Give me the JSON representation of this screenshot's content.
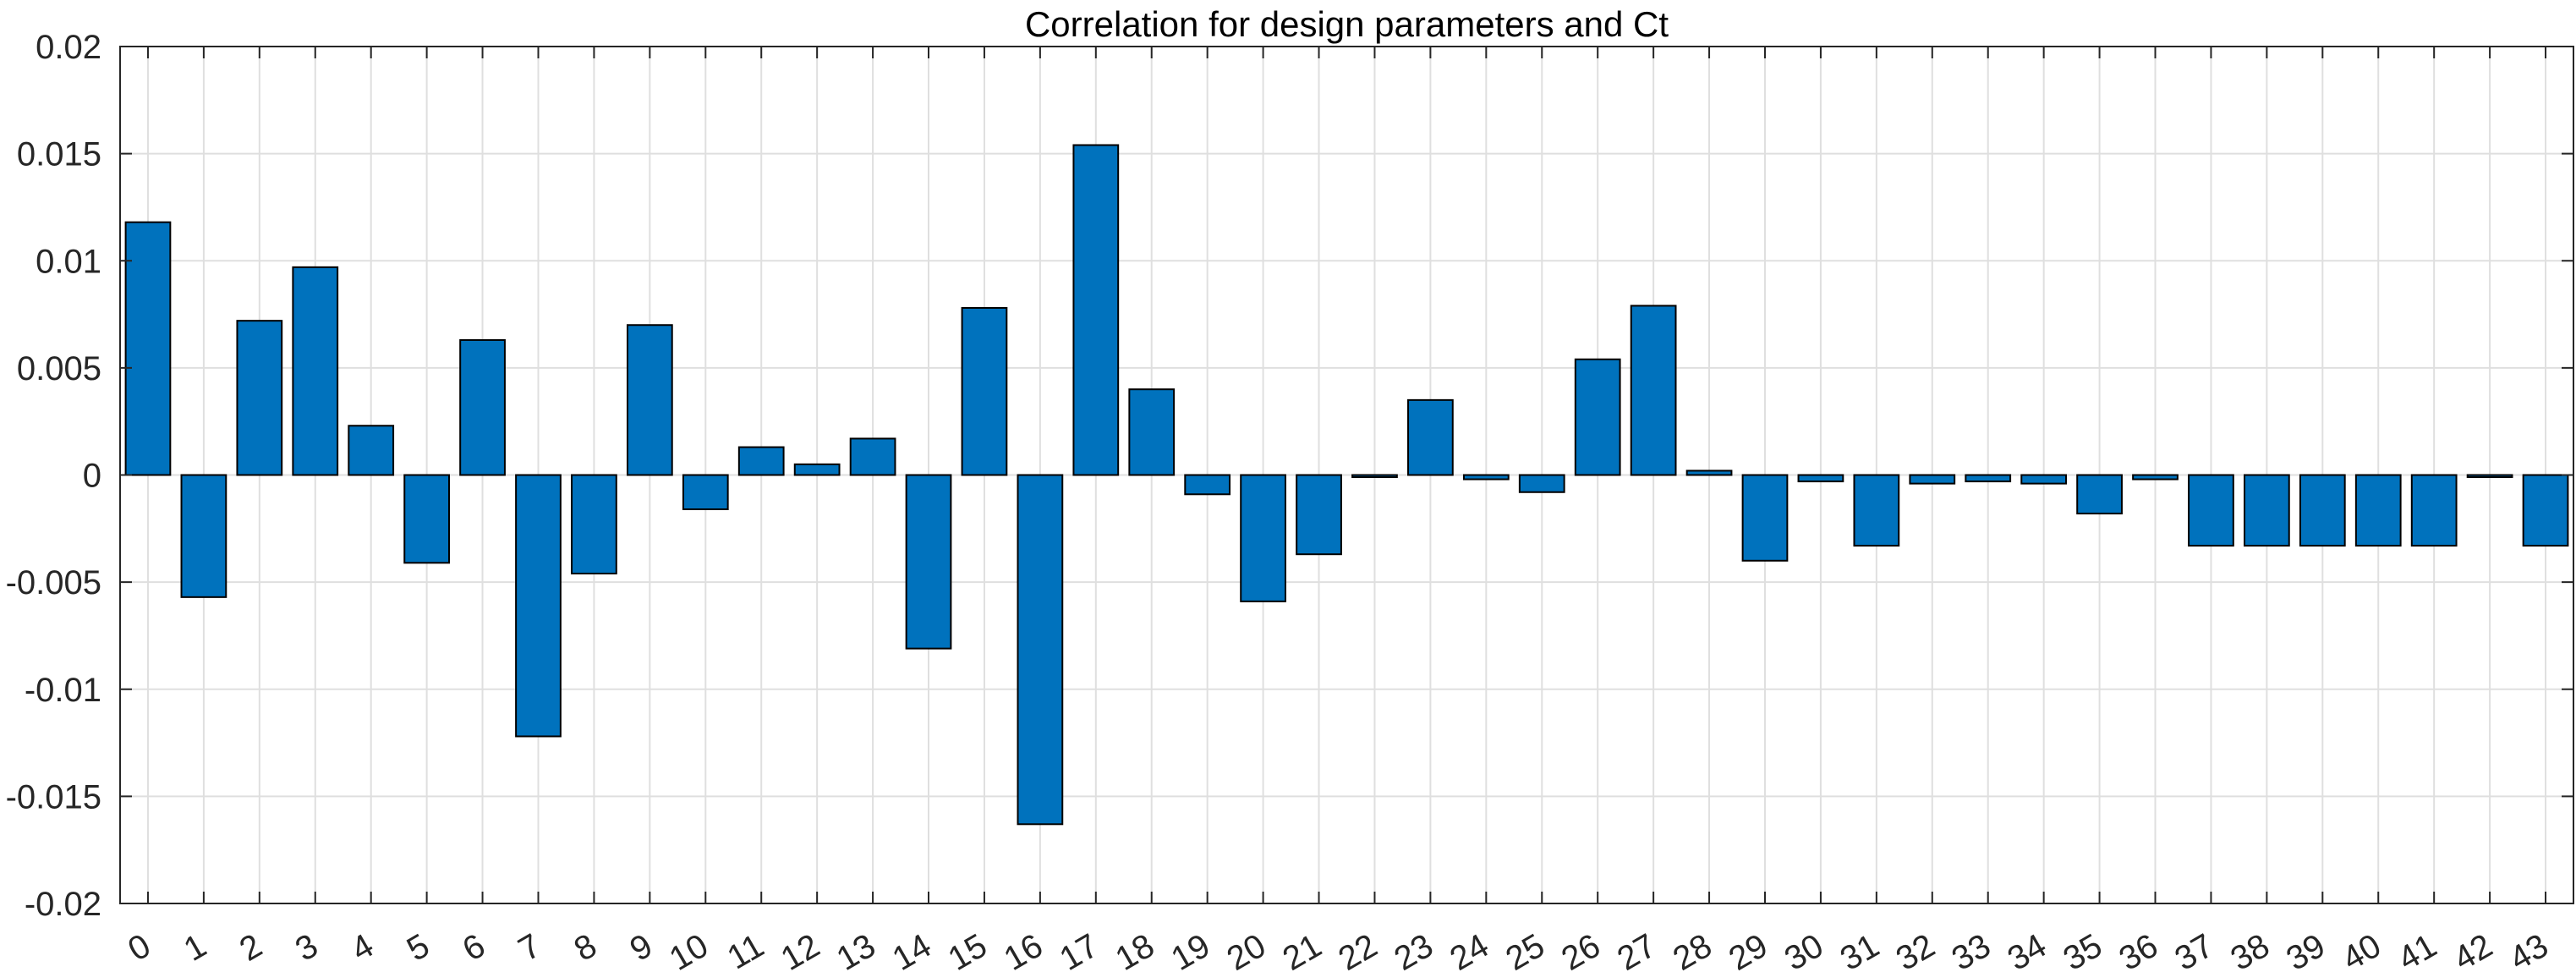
{
  "chart_data": {
    "type": "bar",
    "title": "Correlation for design parameters and Ct",
    "xlabel": "",
    "ylabel": "",
    "categories": [
      "0",
      "1",
      "2",
      "3",
      "4",
      "5",
      "6",
      "7",
      "8",
      "9",
      "10",
      "11",
      "12",
      "13",
      "14",
      "15",
      "16",
      "17",
      "18",
      "19",
      "20",
      "21",
      "22",
      "23",
      "24",
      "25",
      "26",
      "27",
      "28",
      "29",
      "30",
      "31",
      "32",
      "33",
      "34",
      "35",
      "36",
      "37",
      "38",
      "39",
      "40",
      "41",
      "42",
      "43"
    ],
    "values": [
      0.0118,
      -0.0057,
      0.0072,
      0.0097,
      0.0023,
      -0.0041,
      0.0063,
      -0.0122,
      -0.0046,
      0.007,
      -0.0016,
      0.0013,
      0.0005,
      0.0017,
      -0.0081,
      0.0078,
      -0.0163,
      0.0154,
      0.004,
      -0.0009,
      -0.0059,
      -0.0037,
      -0.0001,
      0.0035,
      -0.0002,
      -0.0008,
      0.0054,
      0.0079,
      0.0002,
      -0.004,
      -0.0003,
      -0.0033,
      -0.0004,
      -0.0003,
      -0.0004,
      -0.0018,
      -0.0002,
      -0.0033,
      -0.0033,
      -0.0033,
      -0.0033,
      -0.0033,
      -0.0001,
      -0.0033
    ],
    "ylim": [
      -0.02,
      0.02
    ],
    "yticks": [
      "-0.02",
      "-0.015",
      "-0.01",
      "-0.005",
      "0",
      "0.005",
      "0.01",
      "0.015",
      "0.02"
    ],
    "grid": true,
    "legend": "none",
    "colors": {
      "bar_fill": "#0072BD",
      "bar_edge": "#000000",
      "grid": "#dfdfdf",
      "axes": "#262626"
    }
  }
}
